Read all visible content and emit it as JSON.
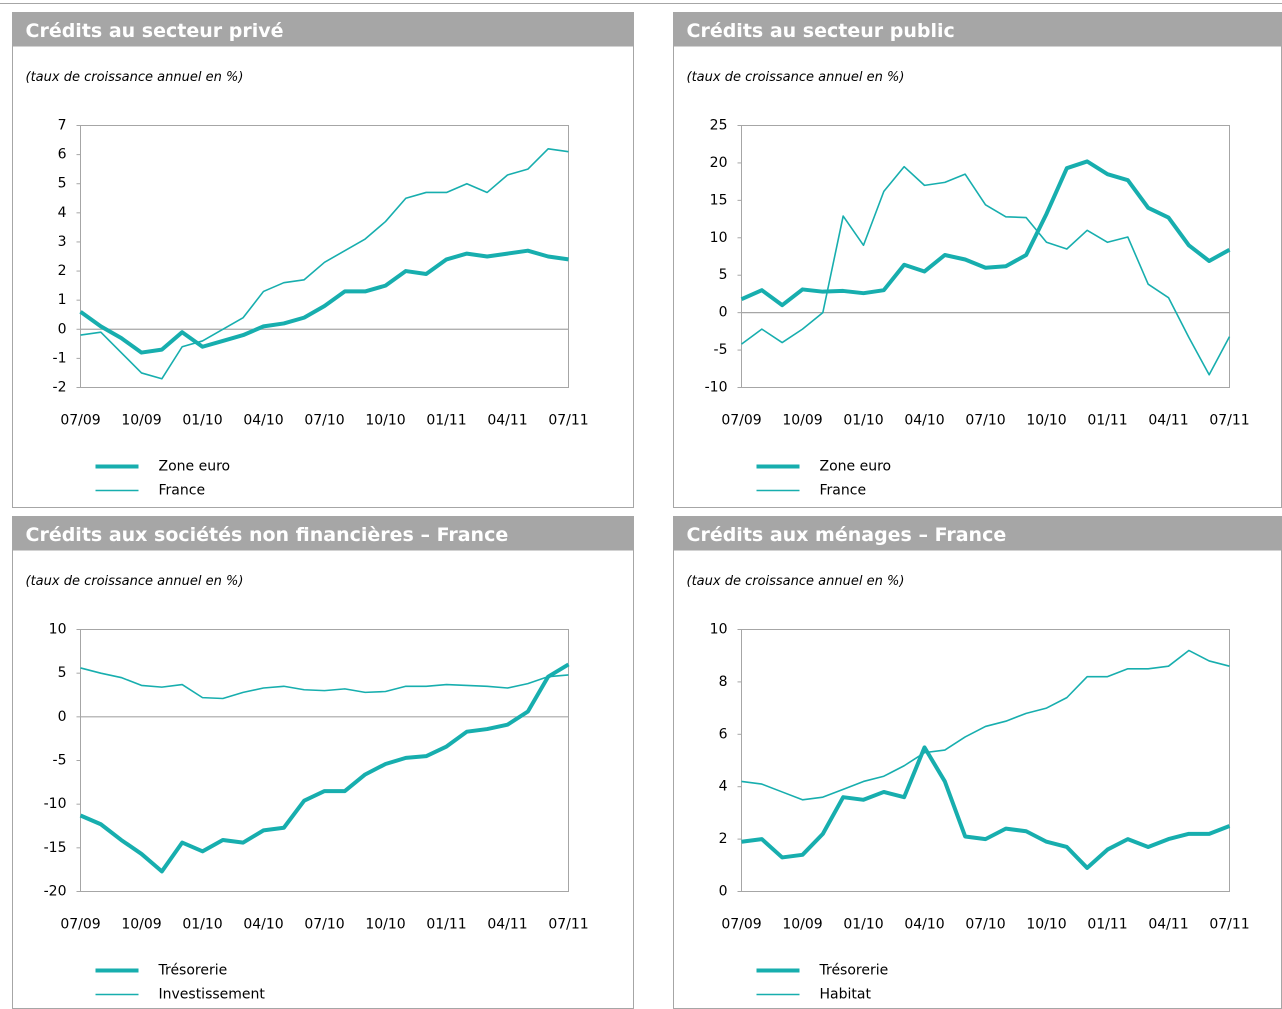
{
  "chart_data": [
    {
      "type": "line",
      "title": "Crédits au secteur privé",
      "subtitle": "(taux de croissance annuel en %)",
      "categories": [
        "07/09",
        null,
        null,
        "10/09",
        null,
        null,
        "01/10",
        null,
        null,
        "04/10",
        null,
        null,
        "07/10",
        null,
        null,
        "10/10",
        null,
        null,
        "01/11",
        null,
        null,
        "04/11",
        null,
        null,
        "07/11"
      ],
      "series": [
        {
          "name": "Zone euro",
          "color": "#17aeae",
          "linewidth": 4,
          "values": [
            0.6,
            0.1,
            -0.3,
            -0.8,
            -0.7,
            -0.1,
            -0.6,
            -0.4,
            -0.2,
            0.1,
            0.2,
            0.4,
            0.8,
            1.3,
            1.3,
            1.5,
            2.0,
            1.9,
            2.4,
            2.6,
            2.5,
            2.6,
            2.7,
            2.5,
            2.4
          ]
        },
        {
          "name": "France",
          "color": "#17aeae",
          "linewidth": 1.6,
          "values": [
            -0.2,
            -0.1,
            -0.8,
            -1.5,
            -1.7,
            -0.6,
            -0.4,
            0.0,
            0.4,
            1.3,
            1.6,
            1.7,
            2.3,
            2.7,
            3.1,
            3.7,
            4.5,
            4.7,
            4.7,
            5.0,
            4.7,
            5.3,
            5.5,
            6.2,
            6.1
          ]
        }
      ],
      "ylim": [
        -2,
        7
      ],
      "yticks": [
        -2,
        -1,
        0,
        1,
        2,
        3,
        4,
        5,
        6,
        7
      ],
      "grid": false
    },
    {
      "type": "line",
      "title": "Crédits au secteur public",
      "subtitle": "(taux de croissance annuel en %)",
      "categories": [
        "07/09",
        null,
        null,
        "10/09",
        null,
        null,
        "01/10",
        null,
        null,
        "04/10",
        null,
        null,
        "07/10",
        null,
        null,
        "10/10",
        null,
        null,
        "01/11",
        null,
        null,
        "04/11",
        null,
        null,
        "07/11"
      ],
      "series": [
        {
          "name": "Zone euro",
          "color": "#17aeae",
          "linewidth": 4,
          "values": [
            1.8,
            3.0,
            1.0,
            3.1,
            2.8,
            2.9,
            2.6,
            3.0,
            6.4,
            5.5,
            7.7,
            7.1,
            6.0,
            6.2,
            7.7,
            13.2,
            19.3,
            20.2,
            18.5,
            17.7,
            14.0,
            12.7,
            9.0,
            6.9,
            8.4
          ]
        },
        {
          "name": "France",
          "color": "#17aeae",
          "linewidth": 1.6,
          "values": [
            -4.2,
            -2.2,
            -4.0,
            -2.2,
            0.0,
            12.9,
            9.0,
            16.2,
            19.5,
            17.0,
            17.4,
            18.5,
            14.4,
            12.8,
            12.7,
            9.4,
            8.5,
            11.0,
            9.4,
            10.1,
            3.8,
            2.0,
            -3.3,
            -8.3,
            -3.2
          ]
        }
      ],
      "ylim": [
        -10,
        25
      ],
      "yticks": [
        -10,
        -5,
        0,
        5,
        10,
        15,
        20,
        25
      ],
      "grid": false
    },
    {
      "type": "line",
      "title": "Crédits aux sociétés non financières – France",
      "subtitle": "(taux de croissance annuel en %)",
      "categories": [
        "07/09",
        null,
        null,
        "10/09",
        null,
        null,
        "01/10",
        null,
        null,
        "04/10",
        null,
        null,
        "07/10",
        null,
        null,
        "10/10",
        null,
        null,
        "01/11",
        null,
        null,
        "04/11",
        null,
        null,
        "07/11"
      ],
      "series": [
        {
          "name": "Trésorerie",
          "color": "#17aeae",
          "linewidth": 4,
          "values": [
            -11.3,
            -12.3,
            -14.1,
            -15.7,
            -17.7,
            -14.4,
            -15.4,
            -14.1,
            -14.4,
            -13.0,
            -12.7,
            -9.6,
            -8.5,
            -8.5,
            -6.6,
            -5.4,
            -4.7,
            -4.5,
            -3.4,
            -1.7,
            -1.4,
            -0.9,
            0.6,
            4.6,
            6.0
          ]
        },
        {
          "name": "Investissement",
          "color": "#17aeae",
          "linewidth": 1.6,
          "values": [
            5.6,
            5.0,
            4.5,
            3.6,
            3.4,
            3.7,
            2.2,
            2.1,
            2.8,
            3.3,
            3.5,
            3.1,
            3.0,
            3.2,
            2.8,
            2.9,
            3.5,
            3.5,
            3.7,
            3.6,
            3.5,
            3.3,
            3.8,
            4.6,
            4.8
          ]
        }
      ],
      "ylim": [
        -20,
        10
      ],
      "yticks": [
        -20,
        -15,
        -10,
        -5,
        0,
        5,
        10
      ],
      "grid": false
    },
    {
      "type": "line",
      "title": "Crédits aux ménages – France",
      "subtitle": "(taux de croissance annuel en %)",
      "categories": [
        "07/09",
        null,
        null,
        "10/09",
        null,
        null,
        "01/10",
        null,
        null,
        "04/10",
        null,
        null,
        "07/10",
        null,
        null,
        "10/10",
        null,
        null,
        "01/11",
        null,
        null,
        "04/11",
        null,
        null,
        "07/11"
      ],
      "series": [
        {
          "name": "Trésorerie",
          "color": "#17aeae",
          "linewidth": 4,
          "values": [
            1.9,
            2.0,
            1.3,
            1.4,
            2.2,
            3.6,
            3.5,
            3.8,
            3.6,
            5.5,
            4.2,
            2.1,
            2.0,
            2.4,
            2.3,
            1.9,
            1.7,
            0.9,
            1.6,
            2.0,
            1.7,
            2.0,
            2.2,
            2.2,
            2.5
          ]
        },
        {
          "name": "Habitat",
          "color": "#17aeae",
          "linewidth": 1.6,
          "values": [
            4.2,
            4.1,
            3.8,
            3.5,
            3.6,
            3.9,
            4.2,
            4.4,
            4.8,
            5.3,
            5.4,
            5.9,
            6.3,
            6.5,
            6.8,
            7.0,
            7.4,
            8.2,
            8.2,
            8.5,
            8.5,
            8.6,
            9.2,
            8.8,
            8.6
          ]
        }
      ],
      "ylim": [
        0,
        10
      ],
      "yticks": [
        0,
        2,
        4,
        6,
        8,
        10
      ],
      "grid": false
    }
  ]
}
